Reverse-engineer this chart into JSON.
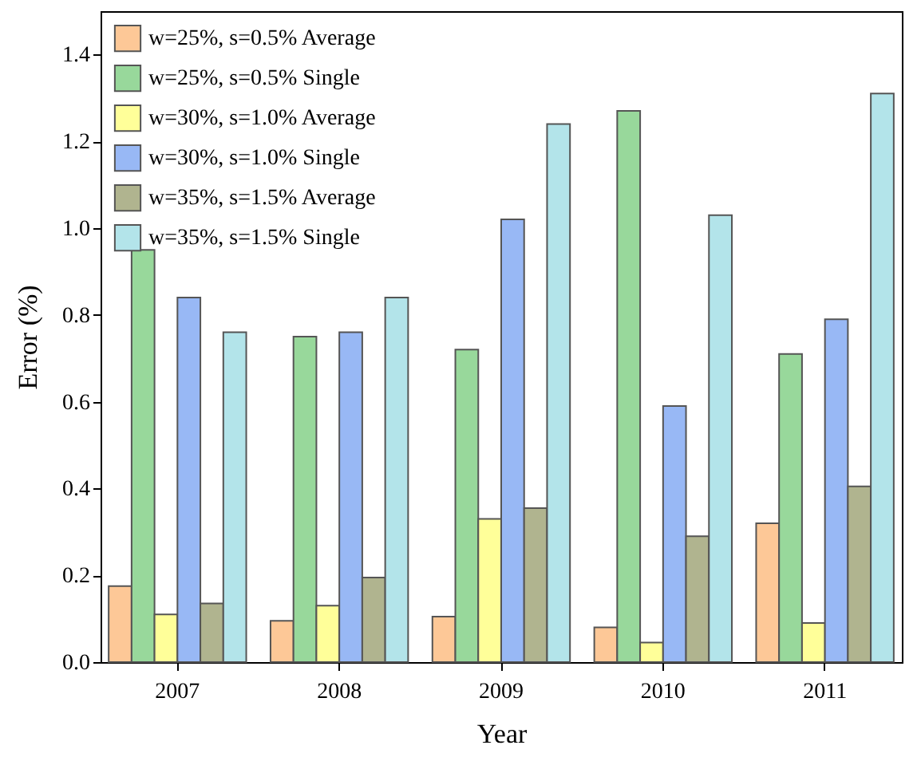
{
  "chart_data": {
    "type": "bar",
    "xlabel": "Year",
    "ylabel": "Error (%)",
    "categories": [
      "2007",
      "2008",
      "2009",
      "2010",
      "2011"
    ],
    "series": [
      {
        "name": "w=25%, s=0.5% Average",
        "color": "#fdc897",
        "values": [
          0.175,
          0.095,
          0.105,
          0.08,
          0.32
        ]
      },
      {
        "name": "w=25%, s=0.5% Single",
        "color": "#98d89b",
        "values": [
          0.95,
          0.75,
          0.72,
          1.27,
          0.71
        ]
      },
      {
        "name": "w=30%, s=1.0% Average",
        "color": "#ffff99",
        "values": [
          0.11,
          0.13,
          0.33,
          0.045,
          0.09
        ]
      },
      {
        "name": "w=30%, s=1.0% Single",
        "color": "#98b8f5",
        "values": [
          0.84,
          0.76,
          1.02,
          0.59,
          0.79
        ]
      },
      {
        "name": "w=35%, s=1.5% Average",
        "color": "#b0b48f",
        "values": [
          0.135,
          0.195,
          0.355,
          0.29,
          0.405
        ]
      },
      {
        "name": "w=35%, s=1.5% Single",
        "color": "#b3e4ea",
        "values": [
          0.76,
          0.84,
          1.24,
          1.03,
          1.31
        ]
      }
    ],
    "ylim": [
      0,
      1.5
    ],
    "yticks": [
      {
        "value": 0,
        "label": "0.0"
      },
      0.2,
      0.4,
      0.6,
      0.8,
      {
        "value": 1,
        "label": "1.0"
      },
      1.2,
      1.4
    ],
    "legend": "top left",
    "grid": false
  }
}
